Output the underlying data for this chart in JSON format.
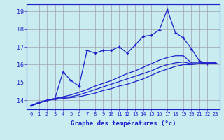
{
  "xlabel": "Graphe des températures (°c)",
  "x": [
    0,
    1,
    2,
    3,
    4,
    5,
    6,
    7,
    8,
    9,
    10,
    11,
    12,
    13,
    14,
    15,
    16,
    17,
    18,
    19,
    20,
    21,
    22,
    23
  ],
  "line1": [
    13.7,
    13.9,
    14.0,
    14.1,
    15.6,
    15.1,
    14.8,
    16.8,
    16.65,
    16.8,
    16.8,
    17.0,
    16.65,
    17.1,
    17.6,
    17.65,
    17.95,
    19.1,
    17.8,
    17.5,
    16.9,
    16.2,
    16.05,
    16.1
  ],
  "line2": [
    13.7,
    13.85,
    14.0,
    14.05,
    14.1,
    14.15,
    14.2,
    14.3,
    14.4,
    14.55,
    14.65,
    14.8,
    14.9,
    15.05,
    15.2,
    15.4,
    15.6,
    15.75,
    15.9,
    16.0,
    16.0,
    16.05,
    16.1,
    16.1
  ],
  "line3": [
    13.7,
    13.85,
    14.0,
    14.1,
    14.15,
    14.2,
    14.3,
    14.45,
    14.6,
    14.75,
    14.9,
    15.05,
    15.2,
    15.35,
    15.5,
    15.65,
    15.85,
    16.0,
    16.1,
    16.15,
    16.05,
    16.05,
    16.1,
    16.1
  ],
  "line4": [
    13.7,
    13.85,
    14.0,
    14.1,
    14.2,
    14.3,
    14.45,
    14.6,
    14.8,
    14.95,
    15.1,
    15.3,
    15.5,
    15.65,
    15.85,
    16.05,
    16.25,
    16.4,
    16.5,
    16.5,
    16.1,
    16.1,
    16.15,
    16.15
  ],
  "line_color": "#2020cc",
  "bg_color": "#c8ecf0",
  "grid_color": "#a0a0b0",
  "ylim": [
    13.5,
    19.4
  ],
  "yticks": [
    14,
    15,
    16,
    17,
    18,
    19
  ],
  "xticks": [
    0,
    1,
    2,
    3,
    4,
    5,
    6,
    7,
    8,
    9,
    10,
    11,
    12,
    13,
    14,
    15,
    16,
    17,
    18,
    19,
    20,
    21,
    22,
    23
  ]
}
